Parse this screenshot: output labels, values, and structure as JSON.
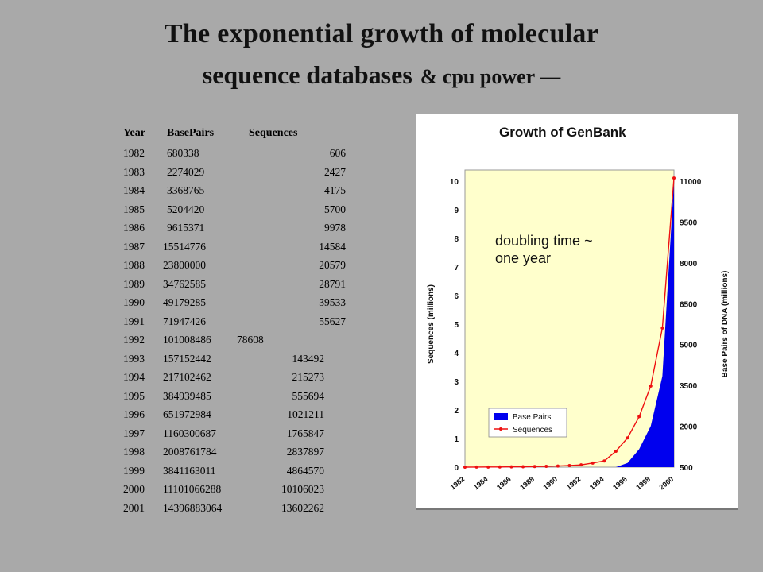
{
  "slide": {
    "title_line1": "The exponential growth of molecular",
    "title_line2": "sequence databases",
    "title_line2_suffix": "& cpu power —"
  },
  "table": {
    "headers": [
      "Year",
      "BasePairs",
      "Sequences"
    ],
    "rows": [
      [
        "1982",
        "680338",
        "606"
      ],
      [
        "1983",
        "2274029",
        "2427"
      ],
      [
        "1984",
        "3368765",
        "4175"
      ],
      [
        "1985",
        "5204420",
        "5700"
      ],
      [
        "1986",
        "9615371",
        "9978"
      ],
      [
        "1987",
        "15514776",
        "14584"
      ],
      [
        "1988",
        "23800000",
        "20579"
      ],
      [
        "1989",
        "34762585",
        "28791"
      ],
      [
        "1990",
        "49179285",
        "39533"
      ],
      [
        "1991",
        "71947426",
        "55627"
      ],
      [
        "1992",
        "101008486",
        "78608"
      ],
      [
        "1993",
        "157152442",
        "143492"
      ],
      [
        "1994",
        "217102462",
        "215273"
      ],
      [
        "1995",
        "384939485",
        "555694"
      ],
      [
        "1996",
        "651972984",
        "1021211"
      ],
      [
        "1997",
        "1160300687",
        "1765847"
      ],
      [
        "1998",
        "2008761784",
        "2837897"
      ],
      [
        "1999",
        "3841163011",
        "4864570"
      ],
      [
        "2000",
        "11101066288",
        "10106023"
      ],
      [
        "2001",
        "14396883064",
        "13602262"
      ]
    ]
  },
  "chart_data": {
    "type": "line",
    "title": "Growth of GenBank",
    "xlabel": "",
    "ylabel": "Sequences (millions)",
    "y2label": "Base Pairs of DNA (millions)",
    "x": [
      1982,
      1983,
      1984,
      1985,
      1986,
      1987,
      1988,
      1989,
      1990,
      1991,
      1992,
      1993,
      1994,
      1995,
      1996,
      1997,
      1998,
      1999,
      2000
    ],
    "x_tick_labels": [
      "1982",
      "1984",
      "1986",
      "1988",
      "1990",
      "1992",
      "1994",
      "1996",
      "1998",
      "2000"
    ],
    "ylim": [
      0,
      10
    ],
    "y_ticks": [
      "0",
      "1",
      "2",
      "3",
      "4",
      "5",
      "6",
      "7",
      "8",
      "9",
      "10"
    ],
    "y2lim": [
      500,
      11000
    ],
    "y2_ticks": [
      "500",
      "2000",
      "3500",
      "5000",
      "6500",
      "8000",
      "9500",
      "11000"
    ],
    "series": [
      {
        "name": "Base Pairs",
        "kind": "area",
        "axis": "right",
        "color": "#0000ee",
        "values": [
          0.7,
          2.3,
          3.4,
          5.2,
          9.6,
          15.5,
          23.8,
          34.8,
          49.2,
          71.9,
          101,
          157,
          217,
          385,
          652,
          1160,
          2009,
          3841,
          11101
        ]
      },
      {
        "name": "Sequences",
        "kind": "line",
        "axis": "left",
        "color": "#ee1111",
        "values": [
          0.0006,
          0.0024,
          0.0042,
          0.0057,
          0.01,
          0.0146,
          0.0206,
          0.0288,
          0.0395,
          0.0556,
          0.0786,
          0.1435,
          0.2153,
          0.5557,
          1.0212,
          1.7658,
          2.8379,
          4.8646,
          10.106
        ]
      }
    ],
    "legend": "bottom-left",
    "annotation": "doubling time ~\none year",
    "grid": false,
    "plot_background": "#ffffcc"
  }
}
